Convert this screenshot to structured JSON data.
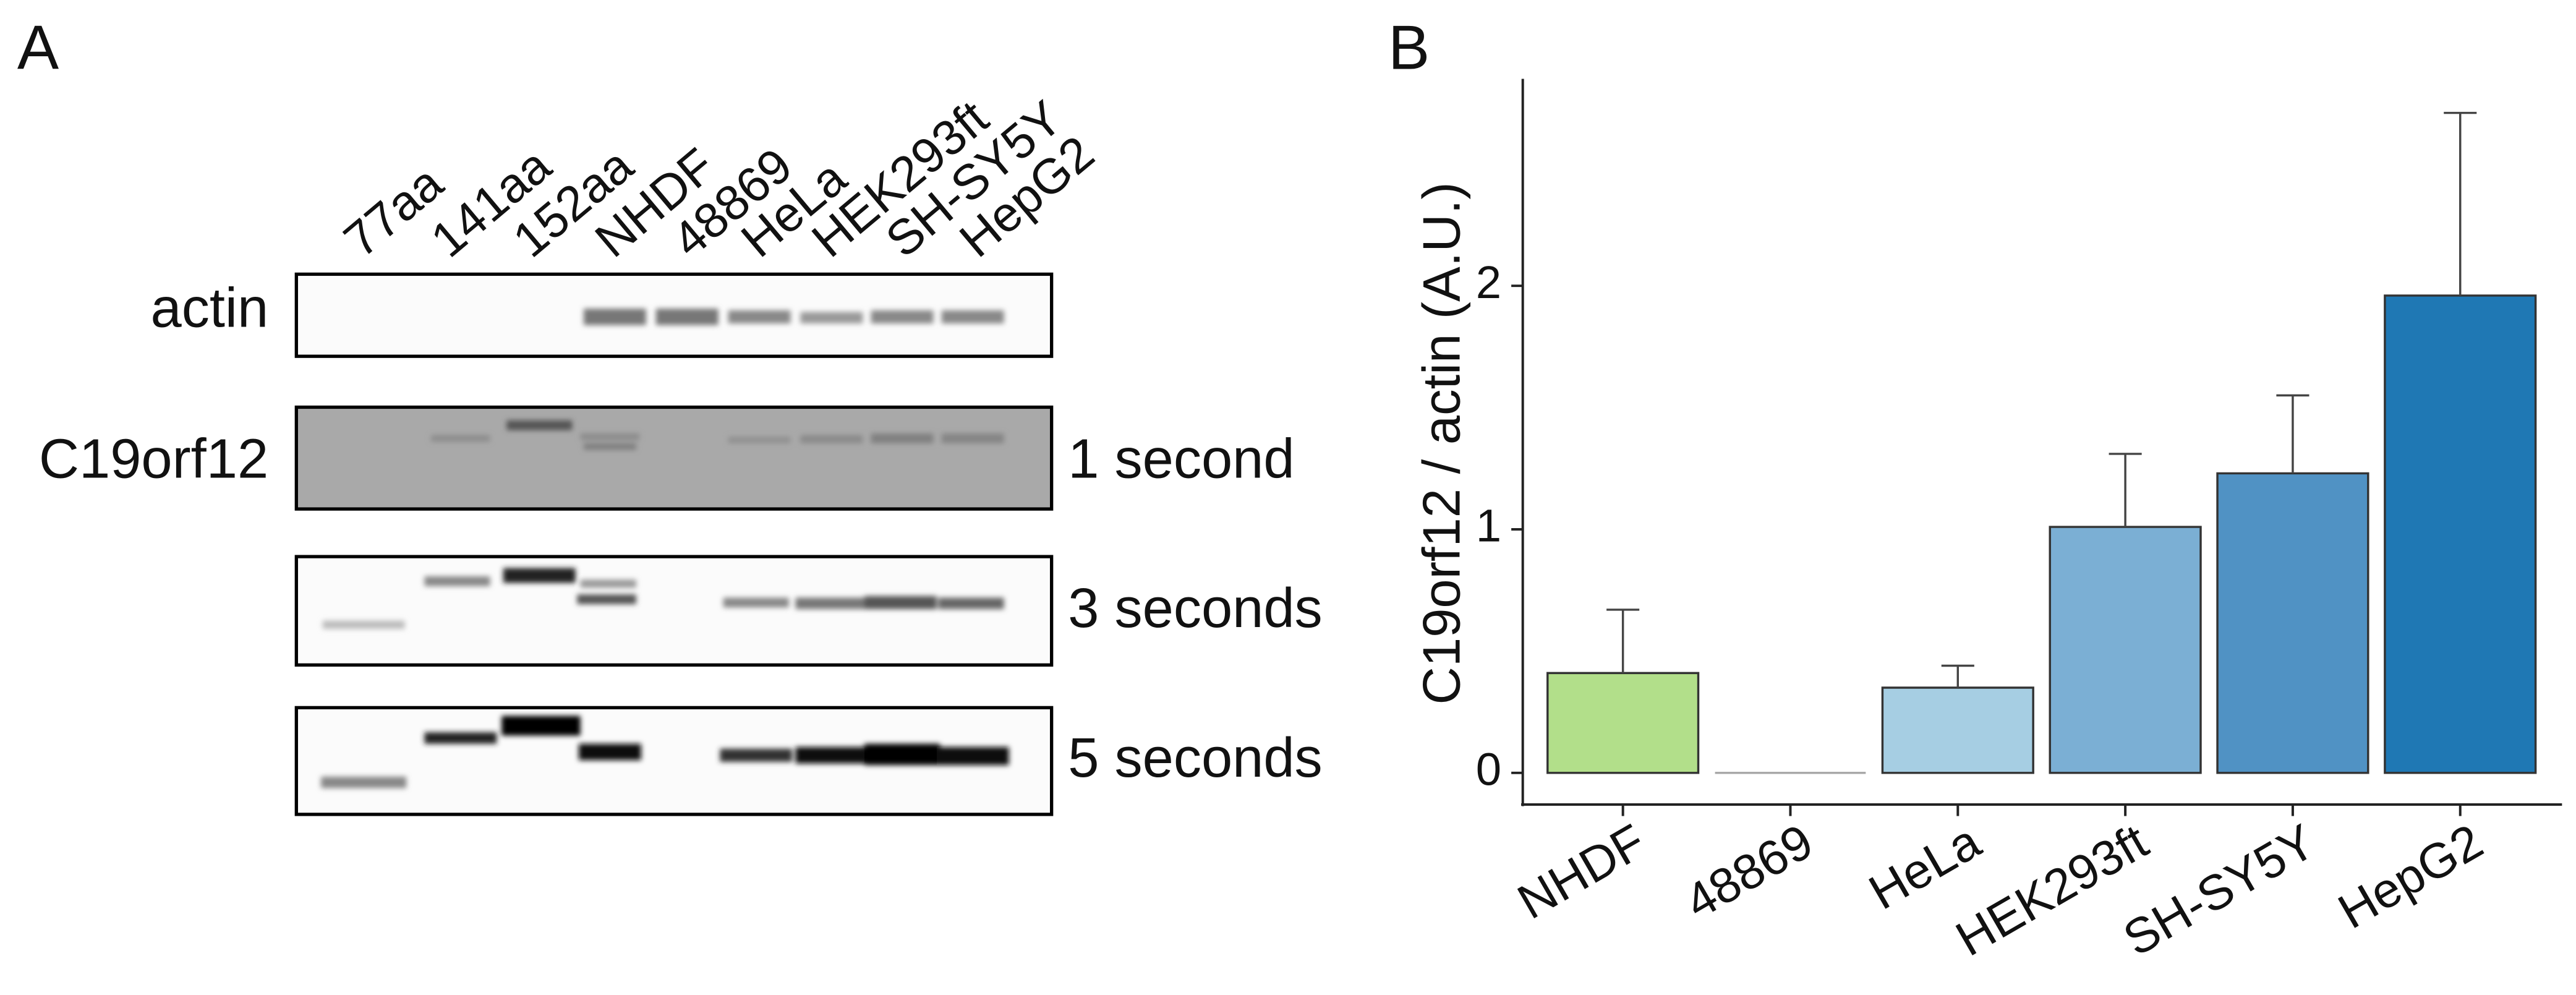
{
  "panel_a": {
    "label": "A",
    "lanes": [
      "77aa",
      "141aa",
      "152aa",
      "NHDF",
      "48869",
      "HeLa",
      "HEK293ft",
      "SH-SY5Y",
      "HepG2"
    ],
    "rows": [
      "actin",
      "C19orf12"
    ],
    "exposures": [
      "1 second",
      "3 seconds",
      "5 seconds"
    ]
  },
  "chart_data": {
    "type": "bar",
    "label": "B",
    "ylabel": "C19orf12 / actin (A.U.)",
    "categories": [
      "NHDF",
      "48869",
      "HeLa",
      "HEK293ft",
      "SH-SY5Y",
      "HepG2"
    ],
    "values": [
      0.41,
      0,
      0.35,
      1.01,
      1.23,
      1.96
    ],
    "errors": [
      0.26,
      0,
      0.09,
      0.3,
      0.32,
      0.75
    ],
    "colors": [
      "#b2df8a",
      "#a6a6a6",
      "#a6cee3",
      "#7bafd4",
      "#5092c4",
      "#1f78b4"
    ],
    "ylim": [
      -0.13,
      2.85
    ],
    "yticks": [
      0,
      1,
      2
    ],
    "grid": false
  }
}
